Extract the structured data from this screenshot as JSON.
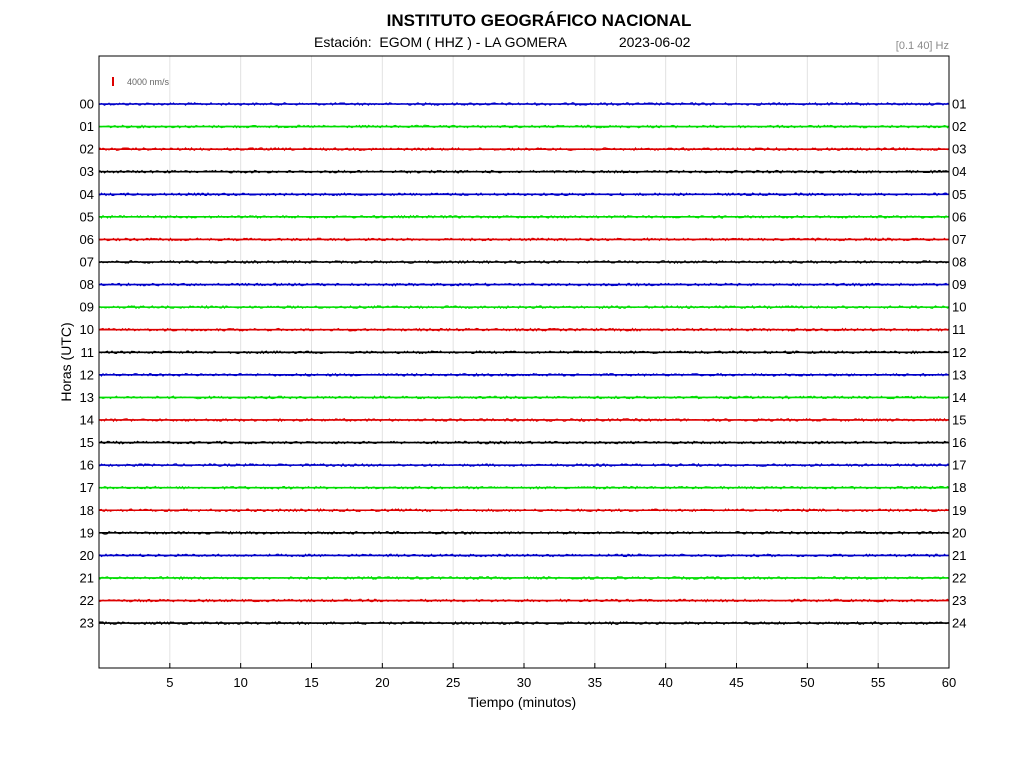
{
  "header": {
    "title": "INSTITUTO GEOGRÁFICO NACIONAL",
    "station_text": "Estación:  EGOM ( HHZ ) - LA GOMERA",
    "date": "2023-06-02",
    "filter": "[0.1 40] Hz"
  },
  "chart_data": {
    "type": "line",
    "title": "INSTITUTO GEOGRÁFICO NACIONAL",
    "xlabel": "Tiempo (minutos)",
    "ylabel": "Horas (UTC)",
    "xlim": [
      0,
      60
    ],
    "x_ticks": [
      5,
      10,
      15,
      20,
      25,
      30,
      35,
      40,
      45,
      50,
      55,
      60
    ],
    "left_hour_labels": [
      "00",
      "01",
      "02",
      "03",
      "04",
      "05",
      "06",
      "07",
      "08",
      "09",
      "10",
      "11",
      "12",
      "13",
      "14",
      "15",
      "16",
      "17",
      "18",
      "19",
      "20",
      "21",
      "22",
      "23"
    ],
    "right_hour_labels": [
      "01",
      "02",
      "03",
      "04",
      "05",
      "06",
      "07",
      "08",
      "09",
      "10",
      "11",
      "12",
      "13",
      "14",
      "15",
      "16",
      "17",
      "18",
      "19",
      "20",
      "21",
      "22",
      "23",
      "24"
    ],
    "scale_label": "4000 nm/s",
    "trace_colors": [
      "#0000c8",
      "#00dd00",
      "#dd0000",
      "#000000"
    ],
    "scale_color": "#dd0000",
    "grid": true
  }
}
